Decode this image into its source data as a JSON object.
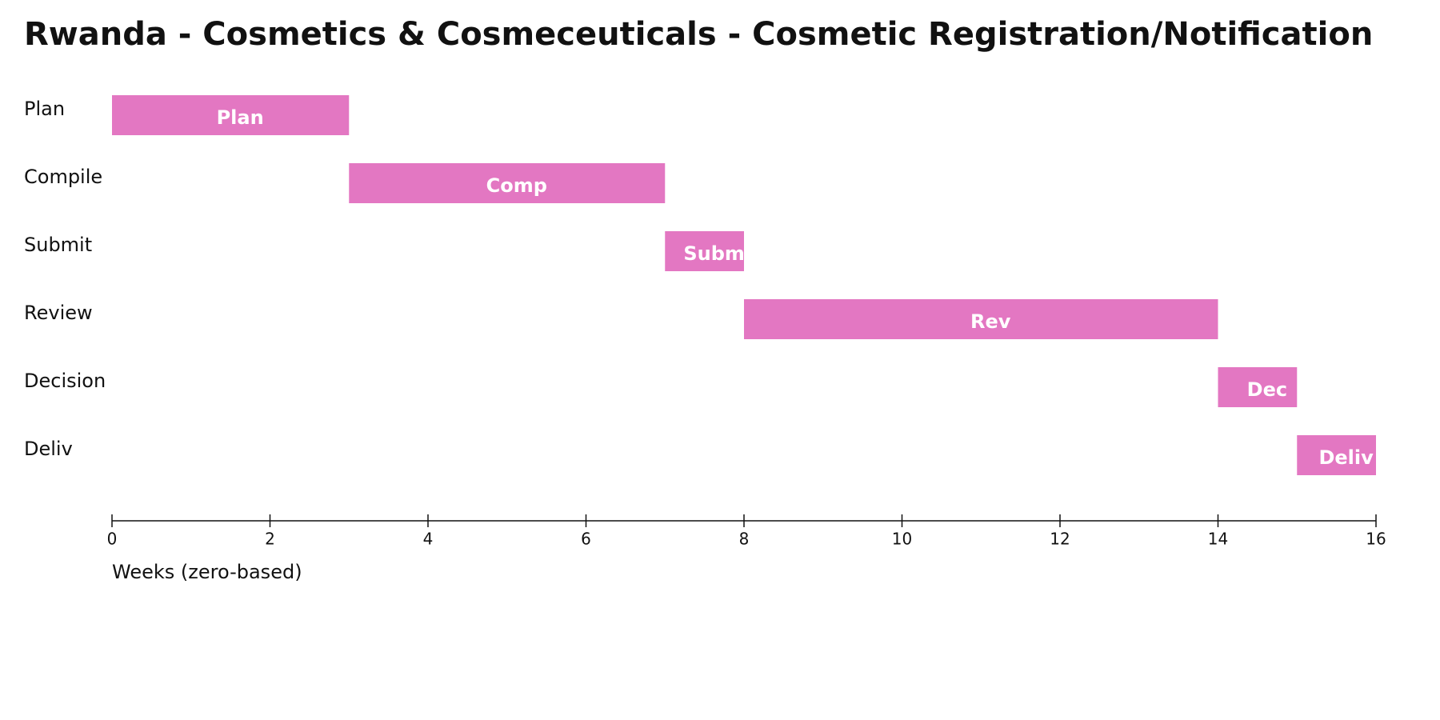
{
  "chart_data": {
    "type": "gantt",
    "title": "Rwanda - Cosmetics & Cosmeceuticals - Cosmetic Registration/Notification",
    "categories": [
      "Plan",
      "Compile",
      "Submit",
      "Review",
      "Decision",
      "Deliv"
    ],
    "start": [
      0,
      3,
      7,
      8,
      14,
      15
    ],
    "end": [
      3,
      7,
      8,
      14,
      15,
      16
    ],
    "bar_labels": [
      "Plan",
      "Comp",
      "Subm",
      "Rev",
      "Dec",
      "Deliv"
    ],
    "color": "#e377c2",
    "x_label": "Weeks (zero-based)",
    "xlim": [
      0,
      16
    ],
    "xticks": [
      0,
      2,
      4,
      6,
      8,
      10,
      12,
      14,
      16
    ],
    "grid": false
  }
}
